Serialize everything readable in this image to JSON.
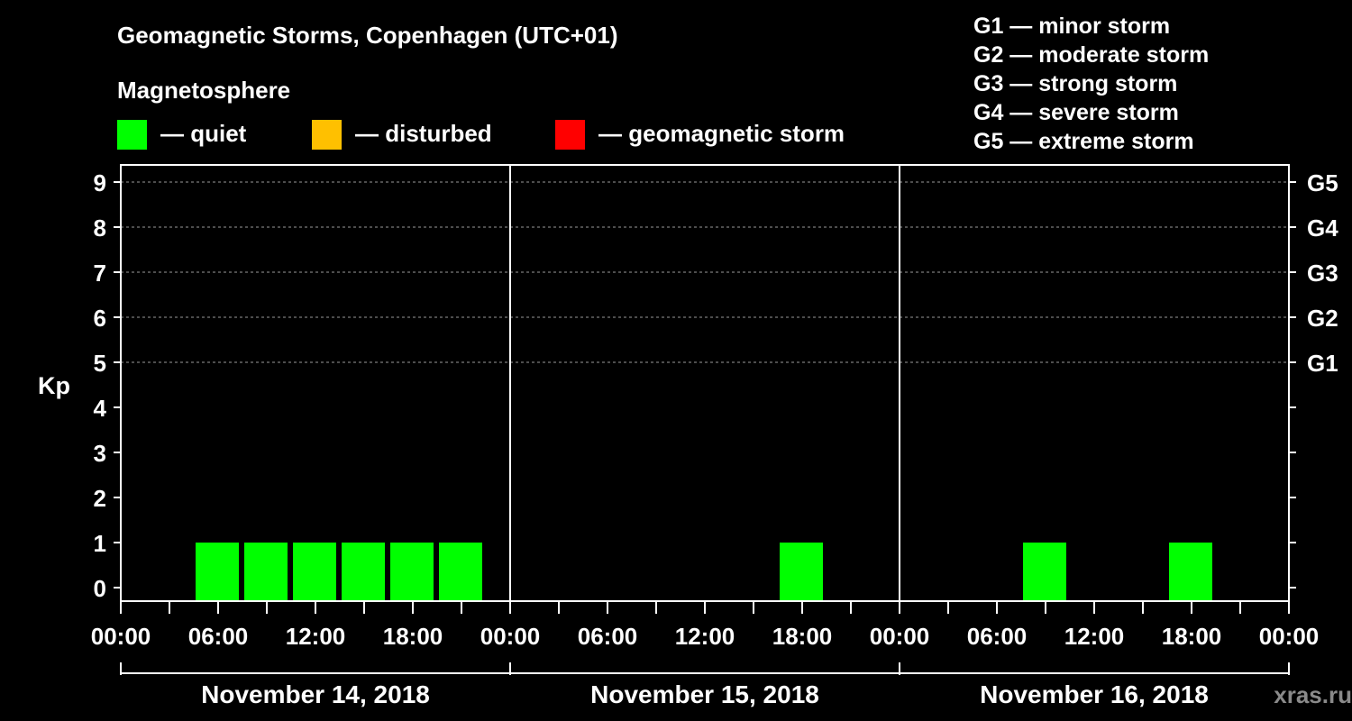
{
  "chart_data": {
    "type": "bar",
    "title": "Geomagnetic Storms, Copenhagen (UTC+01)",
    "legend_title": "Magnetosphere",
    "legend": [
      {
        "label": "— quiet",
        "color": "#00ff00"
      },
      {
        "label": "— disturbed",
        "color": "#ffc000"
      },
      {
        "label": "— geomagnetic storm",
        "color": "#ff0000"
      }
    ],
    "storm_scale": [
      "G1 — minor storm",
      "G2 — moderate storm",
      "G3 — strong storm",
      "G4 — severe storm",
      "G5 — extreme storm"
    ],
    "ylabel": "Kp",
    "ylim": [
      0,
      9
    ],
    "y_ticks": [
      "0",
      "1",
      "2",
      "3",
      "4",
      "5",
      "6",
      "7",
      "8",
      "9"
    ],
    "g_levels": [
      {
        "label": "G1",
        "kp": 5
      },
      {
        "label": "G2",
        "kp": 6
      },
      {
        "label": "G3",
        "kp": 7
      },
      {
        "label": "G4",
        "kp": 8
      },
      {
        "label": "G5",
        "kp": 9
      }
    ],
    "x_ticks": [
      "00:00",
      "06:00",
      "12:00",
      "18:00",
      "00:00",
      "06:00",
      "12:00",
      "18:00",
      "00:00",
      "06:00",
      "12:00",
      "18:00",
      "00:00"
    ],
    "days": [
      "November 14, 2018",
      "November 15, 2018",
      "November 16, 2018"
    ],
    "series": [
      {
        "name": "quiet",
        "color": "#00ff00",
        "bars": [
          {
            "day": 0,
            "start_hour": 4.5,
            "kp": 1
          },
          {
            "day": 0,
            "start_hour": 7.5,
            "kp": 1
          },
          {
            "day": 0,
            "start_hour": 10.5,
            "kp": 1
          },
          {
            "day": 0,
            "start_hour": 13.5,
            "kp": 1
          },
          {
            "day": 0,
            "start_hour": 16.5,
            "kp": 1
          },
          {
            "day": 0,
            "start_hour": 19.5,
            "kp": 1
          },
          {
            "day": 1,
            "start_hour": 16.5,
            "kp": 1
          },
          {
            "day": 2,
            "start_hour": 7.5,
            "kp": 1
          },
          {
            "day": 2,
            "start_hour": 16.5,
            "kp": 1
          }
        ]
      }
    ]
  },
  "watermark": "xras.ru"
}
